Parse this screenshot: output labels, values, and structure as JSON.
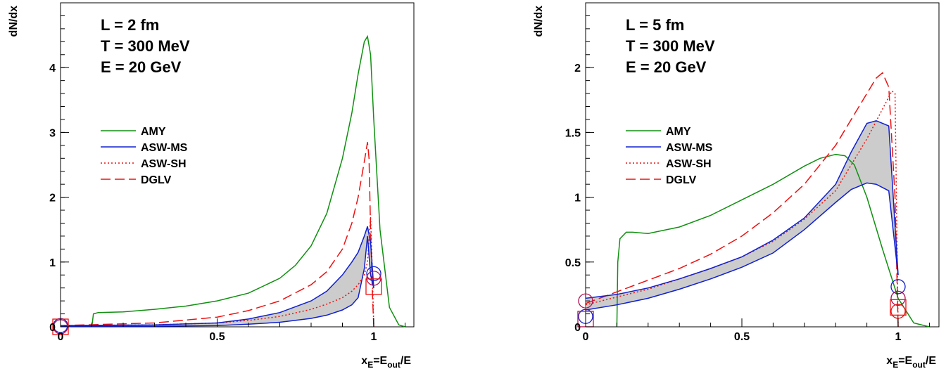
{
  "colors": {
    "AMY": "#109010",
    "ASW-MS": "#1020d0",
    "ASW-SH": "#ee1010",
    "DGLV": "#ee1010",
    "band": "#cccccc"
  },
  "chart_data": [
    {
      "type": "line",
      "info_lines": [
        "L = 2 fm",
        "T = 300 MeV",
        "E = 20 GeV"
      ],
      "ylabel": "dN/dx",
      "xlabel_main": "x",
      "xlabel_sub": "E",
      "xlabel_mid": "=E",
      "xlabel_sub2": "out",
      "xlabel_end": "/E",
      "xlim": [
        0,
        1.1
      ],
      "ylim": [
        0,
        5.0
      ],
      "xticks": [
        0,
        0.5,
        1
      ],
      "xtick_labels": [
        "0",
        "0.5",
        "1"
      ],
      "yticks": [
        0,
        1,
        2,
        3,
        4
      ],
      "ytick_labels": [
        "0",
        "1",
        "2",
        "3",
        "4"
      ],
      "legend": [
        "AMY",
        "ASW-MS",
        "ASW-SH",
        "DGLV"
      ],
      "series": [
        {
          "name": "AMY",
          "style": "solid",
          "x": [
            0.1,
            0.105,
            0.12,
            0.2,
            0.3,
            0.4,
            0.5,
            0.6,
            0.7,
            0.75,
            0.8,
            0.85,
            0.9,
            0.93,
            0.95,
            0.97,
            0.98,
            0.99,
            1.0,
            1.02,
            1.05,
            1.08,
            1.1
          ],
          "y": [
            0,
            0.2,
            0.22,
            0.23,
            0.27,
            0.32,
            0.4,
            0.52,
            0.75,
            0.95,
            1.25,
            1.75,
            2.6,
            3.3,
            3.9,
            4.4,
            4.48,
            4.2,
            3.2,
            1.5,
            0.3,
            0.03,
            0
          ]
        },
        {
          "name": "ASW-SH",
          "style": "dotted",
          "x": [
            0,
            0.3,
            0.5,
            0.6,
            0.7,
            0.8,
            0.85,
            0.9,
            0.93,
            0.95,
            0.97,
            0.98,
            0.985,
            0.99,
            0.995,
            1.0
          ],
          "y": [
            0.02,
            0.03,
            0.06,
            0.1,
            0.16,
            0.27,
            0.35,
            0.45,
            0.55,
            0.65,
            0.8,
            1.0,
            1.35,
            1.7,
            0.9,
            0
          ]
        },
        {
          "name": "DGLV",
          "style": "dashed",
          "x": [
            0,
            0.3,
            0.5,
            0.6,
            0.7,
            0.8,
            0.85,
            0.9,
            0.93,
            0.95,
            0.97,
            0.98,
            0.985,
            0.99,
            0.995,
            1.0
          ],
          "y": [
            0.02,
            0.06,
            0.15,
            0.25,
            0.4,
            0.65,
            0.85,
            1.2,
            1.6,
            2.0,
            2.55,
            2.85,
            2.6,
            1.5,
            0.6,
            0
          ]
        },
        {
          "name": "ASW-MS upper",
          "style": "solid",
          "x": [
            0,
            0.3,
            0.5,
            0.6,
            0.7,
            0.8,
            0.85,
            0.9,
            0.93,
            0.95,
            0.97,
            0.98,
            0.99,
            1.0
          ],
          "y": [
            0.02,
            0.03,
            0.06,
            0.12,
            0.22,
            0.4,
            0.55,
            0.8,
            1.0,
            1.15,
            1.4,
            1.55,
            1.3,
            0.6
          ]
        },
        {
          "name": "ASW-MS lower",
          "style": "solid",
          "x": [
            0,
            0.3,
            0.5,
            0.6,
            0.7,
            0.8,
            0.85,
            0.9,
            0.93,
            0.95,
            0.97,
            0.98,
            0.99,
            1.0
          ],
          "y": [
            0.01,
            0.01,
            0.02,
            0.04,
            0.07,
            0.13,
            0.18,
            0.26,
            0.34,
            0.45,
            0.9,
            1.4,
            0.8,
            0.6
          ]
        }
      ],
      "markers": [
        {
          "type": "circle",
          "color": "#1020d0",
          "x": 0,
          "y": 0.02
        },
        {
          "type": "circle",
          "color": "#b01050",
          "x": 0,
          "y": 0.0
        },
        {
          "type": "square",
          "color": "#ee1010",
          "x": 0,
          "y": 0.0
        },
        {
          "type": "circle",
          "color": "#1020d0",
          "x": 1.0,
          "y": 0.82
        },
        {
          "type": "circle",
          "color": "#b01050",
          "x": 1.0,
          "y": 0.75
        },
        {
          "type": "square",
          "color": "#ee1010",
          "x": 1.0,
          "y": 0.62
        }
      ]
    },
    {
      "type": "line",
      "info_lines": [
        "L = 5 fm",
        "T = 300 MeV",
        "E = 20 GeV"
      ],
      "ylabel": "dN/dx",
      "xlabel_main": "x",
      "xlabel_sub": "E",
      "xlabel_mid": "=E",
      "xlabel_sub2": "out",
      "xlabel_end": "/E",
      "xlim": [
        0,
        1.1
      ],
      "ylim": [
        0,
        2.5
      ],
      "xticks": [
        0,
        0.5,
        1
      ],
      "xtick_labels": [
        "0",
        "0.5",
        "1"
      ],
      "yticks": [
        0,
        0.5,
        1,
        1.5,
        2
      ],
      "ytick_labels": [
        "0",
        "0.5",
        "1",
        "1.5",
        "2"
      ],
      "legend": [
        "AMY",
        "ASW-MS",
        "ASW-SH",
        "DGLV"
      ],
      "series": [
        {
          "name": "AMY",
          "style": "solid",
          "x": [
            0.1,
            0.103,
            0.11,
            0.13,
            0.15,
            0.2,
            0.3,
            0.4,
            0.5,
            0.6,
            0.7,
            0.75,
            0.8,
            0.83,
            0.86,
            0.9,
            0.95,
            1.0,
            1.05,
            1.1
          ],
          "y": [
            0,
            0.5,
            0.68,
            0.73,
            0.73,
            0.72,
            0.77,
            0.86,
            0.98,
            1.1,
            1.24,
            1.3,
            1.33,
            1.32,
            1.25,
            1.0,
            0.6,
            0.22,
            0.03,
            0
          ]
        },
        {
          "name": "ASW-SH",
          "style": "dotted",
          "x": [
            0,
            0.1,
            0.2,
            0.3,
            0.4,
            0.5,
            0.6,
            0.7,
            0.8,
            0.9,
            0.95,
            0.98,
            0.99,
            1.0
          ],
          "y": [
            0.17,
            0.23,
            0.29,
            0.37,
            0.45,
            0.54,
            0.66,
            0.83,
            1.05,
            1.45,
            1.68,
            1.82,
            1.8,
            0
          ]
        },
        {
          "name": "DGLV",
          "style": "dashed",
          "x": [
            0,
            0.1,
            0.2,
            0.3,
            0.4,
            0.5,
            0.6,
            0.7,
            0.8,
            0.9,
            0.93,
            0.95,
            0.97,
            0.99,
            1.0
          ],
          "y": [
            0.18,
            0.27,
            0.36,
            0.45,
            0.56,
            0.7,
            0.88,
            1.1,
            1.4,
            1.8,
            1.92,
            1.96,
            1.85,
            1.0,
            0
          ]
        },
        {
          "name": "ASW-MS upper",
          "style": "solid",
          "x": [
            0,
            0.1,
            0.2,
            0.3,
            0.4,
            0.5,
            0.6,
            0.7,
            0.8,
            0.85,
            0.9,
            0.93,
            0.97,
            1.0
          ],
          "y": [
            0.22,
            0.25,
            0.3,
            0.37,
            0.45,
            0.54,
            0.67,
            0.84,
            1.1,
            1.35,
            1.57,
            1.59,
            1.55,
            0.4
          ]
        },
        {
          "name": "ASW-MS lower",
          "style": "solid",
          "x": [
            0,
            0.1,
            0.2,
            0.3,
            0.4,
            0.5,
            0.6,
            0.7,
            0.8,
            0.85,
            0.9,
            0.93,
            0.97,
            1.0
          ],
          "y": [
            0.13,
            0.17,
            0.22,
            0.29,
            0.37,
            0.46,
            0.57,
            0.75,
            0.96,
            1.06,
            1.11,
            1.1,
            1.05,
            0.4
          ]
        }
      ],
      "markers": [
        {
          "type": "circle",
          "color": "#b01050",
          "x": 0,
          "y": 0.2
        },
        {
          "type": "circle",
          "color": "#1020d0",
          "x": 0,
          "y": 0.08
        },
        {
          "type": "square",
          "color": "#b01050",
          "x": 0,
          "y": 0.06
        },
        {
          "type": "circle",
          "color": "#1020d0",
          "x": 1.0,
          "y": 0.31
        },
        {
          "type": "circle",
          "color": "#b01050",
          "x": 1.0,
          "y": 0.22
        },
        {
          "type": "square",
          "color": "#ee1010",
          "x": 1.0,
          "y": 0.15
        },
        {
          "type": "circle",
          "color": "#ee1010",
          "x": 1.0,
          "y": 0.12
        }
      ]
    }
  ]
}
